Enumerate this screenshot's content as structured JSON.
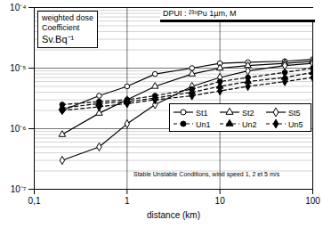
{
  "chart_data": {
    "type": "line",
    "title": "DPUI : ²³⁹Pu 1µm, M",
    "ylabel": [
      "weighted dose",
      "Coefficient",
      "Sv.Bq⁻¹"
    ],
    "xlabel": "distance (km)",
    "annotation": "Stable Unstable Conditions, wind speed 1, 2 et 5 m/s",
    "log": true,
    "grid": true,
    "legend": "right",
    "x": [
      0.2,
      0.5,
      1,
      2,
      5,
      10,
      20,
      50,
      100
    ],
    "xlim": [
      0.1,
      100
    ],
    "xticks": [
      {
        "value": 0.1,
        "label": "0,1"
      },
      1,
      10,
      100
    ],
    "ylim": [
      1e-07,
      0.0001
    ],
    "yticks": [
      {
        "value": 1e-07,
        "label": "10⁻⁷"
      },
      {
        "value": 1e-06,
        "label": "10⁻⁶"
      },
      {
        "value": 1e-05,
        "label": "10⁻⁵"
      },
      {
        "value": 0.0001,
        "label": "10⁻⁴"
      }
    ],
    "series": [
      {
        "name": "St1",
        "color": "#000000",
        "marker": "open-circle",
        "line_style": "solid",
        "values": [
          2e-06,
          3.5e-06,
          5e-06,
          8e-06,
          1e-05,
          1.2e-05,
          1.25e-05,
          1.3e-05,
          1.4e-05
        ]
      },
      {
        "name": "St2",
        "color": "#000000",
        "marker": "open-triangle",
        "line_style": "solid",
        "values": [
          8e-07,
          1.8e-06,
          3e-06,
          5e-06,
          8e-06,
          1e-05,
          1.1e-05,
          1.2e-05,
          1.3e-05
        ]
      },
      {
        "name": "St5",
        "color": "#000000",
        "marker": "open-diamond",
        "line_style": "solid",
        "values": [
          3e-07,
          5e-07,
          1.2e-06,
          2.5e-06,
          5e-06,
          7e-06,
          9e-06,
          1.1e-05,
          1.2e-05
        ]
      },
      {
        "name": "Un1",
        "color": "#000000",
        "marker": "circle",
        "line_style": "dashed",
        "values": [
          2.5e-06,
          2.8e-06,
          3e-06,
          3.5e-06,
          4.5e-06,
          6e-06,
          7e-06,
          8.5e-06,
          1e-05
        ]
      },
      {
        "name": "Un2",
        "color": "#000000",
        "marker": "triangle",
        "line_style": "dashed",
        "values": [
          2.2e-06,
          2.6e-06,
          2.8e-06,
          3.2e-06,
          4e-06,
          5e-06,
          6e-06,
          7e-06,
          8.5e-06
        ]
      },
      {
        "name": "Un5",
        "color": "#000000",
        "marker": "diamond",
        "line_style": "dashed",
        "values": [
          2e-06,
          2.3e-06,
          2.6e-06,
          3e-06,
          3.5e-06,
          4.2e-06,
          5e-06,
          6e-06,
          7e-06
        ]
      }
    ]
  }
}
